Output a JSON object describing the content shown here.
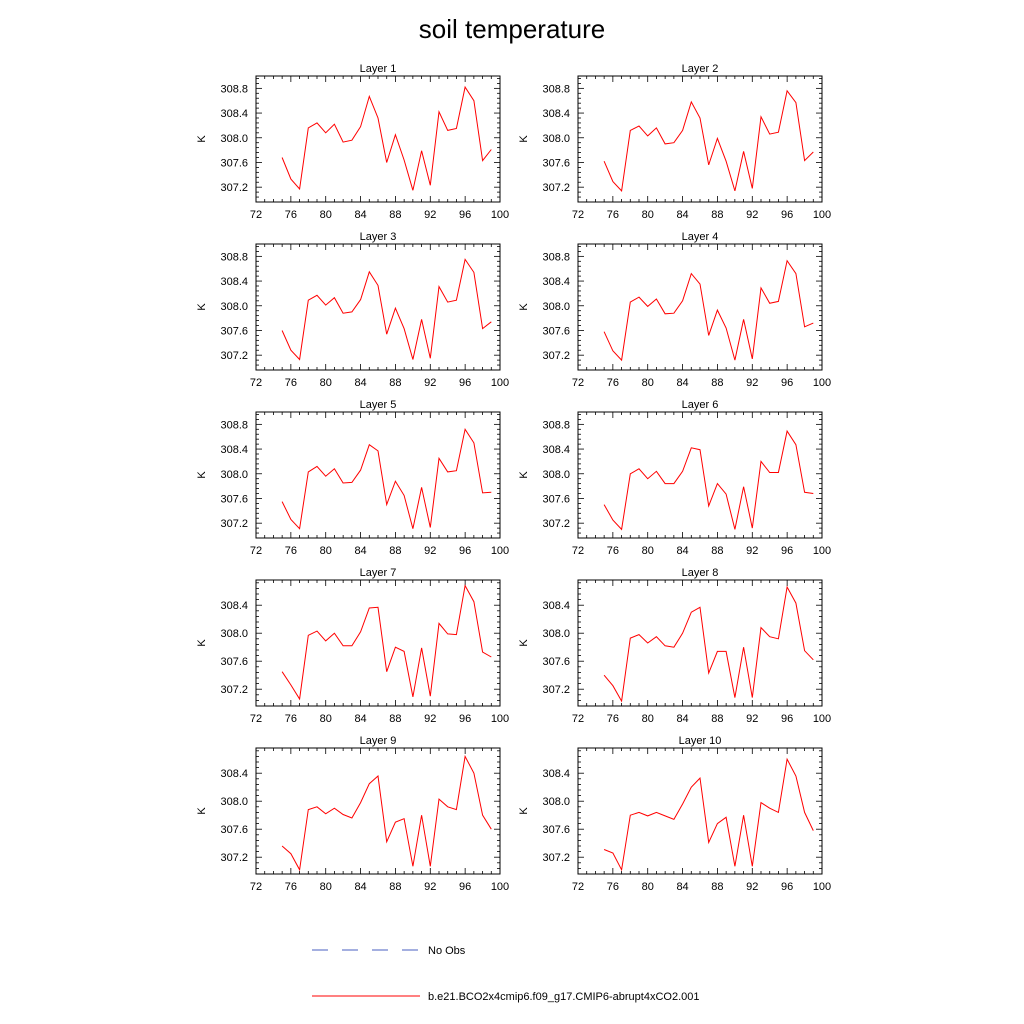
{
  "figure": {
    "title": "soil temperature"
  },
  "legend": {
    "entries": [
      {
        "label": "No Obs",
        "color": "#4a5fc1",
        "style": "dashed"
      },
      {
        "label": "b.e21.BCO2x4cmip6.f09_g17.CMIP6-abrupt4xCO2.001",
        "color": "#ff0000",
        "style": "solid"
      }
    ]
  },
  "chart_data": [
    {
      "type": "line",
      "title": "Layer 1",
      "ylabel": "K",
      "xlim": [
        72,
        100
      ],
      "ylim": [
        306.96,
        309.0
      ],
      "xticks": [
        "72",
        "76",
        "80",
        "84",
        "88",
        "92",
        "96",
        "100"
      ],
      "yticks": [
        "307.2",
        "307.6",
        "308.0",
        "308.4",
        "308.8"
      ],
      "x": [
        75,
        76,
        77,
        78,
        79,
        80,
        81,
        82,
        83,
        84,
        85,
        86,
        87,
        88,
        89,
        90,
        91,
        92,
        93,
        94,
        95,
        96,
        97,
        98,
        99
      ],
      "series": [
        {
          "color": "#ff0000",
          "values": [
            307.68,
            307.33,
            307.17,
            308.16,
            308.24,
            308.08,
            308.22,
            307.93,
            307.96,
            308.18,
            308.67,
            308.32,
            307.6,
            308.05,
            307.64,
            307.15,
            307.79,
            307.23,
            308.42,
            308.12,
            308.15,
            308.82,
            308.6,
            307.63,
            307.81
          ]
        }
      ]
    },
    {
      "type": "line",
      "title": "Layer 2",
      "ylabel": "K",
      "xlim": [
        72,
        100
      ],
      "ylim": [
        306.96,
        309.0
      ],
      "xticks": [
        "72",
        "76",
        "80",
        "84",
        "88",
        "92",
        "96",
        "100"
      ],
      "yticks": [
        "307.2",
        "307.6",
        "308.0",
        "308.4",
        "308.8"
      ],
      "x": [
        75,
        76,
        77,
        78,
        79,
        80,
        81,
        82,
        83,
        84,
        85,
        86,
        87,
        88,
        89,
        90,
        91,
        92,
        93,
        94,
        95,
        96,
        97,
        98,
        99
      ],
      "series": [
        {
          "color": "#ff0000",
          "values": [
            307.62,
            307.29,
            307.14,
            308.12,
            308.19,
            308.03,
            308.16,
            307.9,
            307.92,
            308.12,
            308.58,
            308.32,
            307.56,
            307.99,
            307.62,
            307.14,
            307.78,
            307.18,
            308.34,
            308.06,
            308.09,
            308.76,
            308.57,
            307.63,
            307.77
          ]
        }
      ]
    },
    {
      "type": "line",
      "title": "Layer 3",
      "ylabel": "K",
      "xlim": [
        72,
        100
      ],
      "ylim": [
        306.96,
        309.0
      ],
      "xticks": [
        "72",
        "76",
        "80",
        "84",
        "88",
        "92",
        "96",
        "100"
      ],
      "yticks": [
        "307.2",
        "307.6",
        "308.0",
        "308.4",
        "308.8"
      ],
      "x": [
        75,
        76,
        77,
        78,
        79,
        80,
        81,
        82,
        83,
        84,
        85,
        86,
        87,
        88,
        89,
        90,
        91,
        92,
        93,
        94,
        95,
        96,
        97,
        98,
        99
      ],
      "series": [
        {
          "color": "#ff0000",
          "values": [
            307.6,
            307.28,
            307.13,
            308.09,
            308.17,
            308.01,
            308.13,
            307.88,
            307.9,
            308.1,
            308.55,
            308.33,
            307.54,
            307.96,
            307.63,
            307.13,
            307.78,
            307.15,
            308.31,
            308.06,
            308.09,
            308.75,
            308.54,
            307.63,
            307.74
          ]
        }
      ]
    },
    {
      "type": "line",
      "title": "Layer 4",
      "ylabel": "K",
      "xlim": [
        72,
        100
      ],
      "ylim": [
        306.96,
        309.0
      ],
      "xticks": [
        "72",
        "76",
        "80",
        "84",
        "88",
        "92",
        "96",
        "100"
      ],
      "yticks": [
        "307.2",
        "307.6",
        "308.0",
        "308.4",
        "308.8"
      ],
      "x": [
        75,
        76,
        77,
        78,
        79,
        80,
        81,
        82,
        83,
        84,
        85,
        86,
        87,
        88,
        89,
        90,
        91,
        92,
        93,
        94,
        95,
        96,
        97,
        98,
        99
      ],
      "series": [
        {
          "color": "#ff0000",
          "values": [
            307.58,
            307.27,
            307.12,
            308.06,
            308.14,
            307.99,
            308.11,
            307.87,
            307.88,
            308.08,
            308.52,
            308.35,
            307.52,
            307.93,
            307.64,
            307.12,
            307.78,
            307.14,
            308.29,
            308.04,
            308.07,
            308.73,
            308.52,
            307.66,
            307.72
          ]
        }
      ]
    },
    {
      "type": "line",
      "title": "Layer 5",
      "ylabel": "K",
      "xlim": [
        72,
        100
      ],
      "ylim": [
        306.96,
        309.0
      ],
      "xticks": [
        "72",
        "76",
        "80",
        "84",
        "88",
        "92",
        "96",
        "100"
      ],
      "yticks": [
        "307.2",
        "307.6",
        "308.0",
        "308.4",
        "308.8"
      ],
      "x": [
        75,
        76,
        77,
        78,
        79,
        80,
        81,
        82,
        83,
        84,
        85,
        86,
        87,
        88,
        89,
        90,
        91,
        92,
        93,
        94,
        95,
        96,
        97,
        98,
        99
      ],
      "series": [
        {
          "color": "#ff0000",
          "values": [
            307.55,
            307.26,
            307.11,
            308.03,
            308.12,
            307.96,
            308.08,
            307.85,
            307.86,
            308.06,
            308.47,
            308.37,
            307.5,
            307.88,
            307.65,
            307.11,
            307.78,
            307.13,
            308.25,
            308.03,
            308.05,
            308.72,
            308.5,
            307.69,
            307.7
          ]
        }
      ]
    },
    {
      "type": "line",
      "title": "Layer 6",
      "ylabel": "K",
      "xlim": [
        72,
        100
      ],
      "ylim": [
        306.96,
        309.0
      ],
      "xticks": [
        "72",
        "76",
        "80",
        "84",
        "88",
        "92",
        "96",
        "100"
      ],
      "yticks": [
        "307.2",
        "307.6",
        "308.0",
        "308.4",
        "308.8"
      ],
      "x": [
        75,
        76,
        77,
        78,
        79,
        80,
        81,
        82,
        83,
        84,
        85,
        86,
        87,
        88,
        89,
        90,
        91,
        92,
        93,
        94,
        95,
        96,
        97,
        98,
        99
      ],
      "series": [
        {
          "color": "#ff0000",
          "values": [
            307.5,
            307.25,
            307.1,
            308.0,
            308.08,
            307.92,
            308.04,
            307.84,
            307.84,
            308.04,
            308.42,
            308.39,
            307.48,
            307.84,
            307.67,
            307.1,
            307.79,
            307.12,
            308.2,
            308.02,
            308.02,
            308.69,
            308.47,
            307.7,
            307.68
          ]
        }
      ]
    },
    {
      "type": "line",
      "title": "Layer 7",
      "ylabel": "K",
      "xlim": [
        72,
        100
      ],
      "ylim": [
        306.96,
        308.76
      ],
      "xticks": [
        "72",
        "76",
        "80",
        "84",
        "88",
        "92",
        "96",
        "100"
      ],
      "yticks": [
        "307.2",
        "307.6",
        "308.0",
        "308.4"
      ],
      "x": [
        75,
        76,
        77,
        78,
        79,
        80,
        81,
        82,
        83,
        84,
        85,
        86,
        87,
        88,
        89,
        90,
        91,
        92,
        93,
        94,
        95,
        96,
        97,
        98,
        99
      ],
      "series": [
        {
          "color": "#ff0000",
          "values": [
            307.45,
            307.26,
            307.06,
            307.97,
            308.03,
            307.89,
            308.0,
            307.82,
            307.82,
            308.02,
            308.36,
            308.37,
            307.45,
            307.8,
            307.74,
            307.09,
            307.79,
            307.1,
            308.14,
            307.99,
            307.98,
            308.68,
            308.45,
            307.73,
            307.66
          ]
        }
      ]
    },
    {
      "type": "line",
      "title": "Layer 8",
      "ylabel": "K",
      "xlim": [
        72,
        100
      ],
      "ylim": [
        306.96,
        308.76
      ],
      "xticks": [
        "72",
        "76",
        "80",
        "84",
        "88",
        "92",
        "96",
        "100"
      ],
      "yticks": [
        "307.2",
        "307.6",
        "308.0",
        "308.4"
      ],
      "x": [
        75,
        76,
        77,
        78,
        79,
        80,
        81,
        82,
        83,
        84,
        85,
        86,
        87,
        88,
        89,
        90,
        91,
        92,
        93,
        94,
        95,
        96,
        97,
        98,
        99
      ],
      "series": [
        {
          "color": "#ff0000",
          "values": [
            307.4,
            307.25,
            307.03,
            307.93,
            307.98,
            307.86,
            307.95,
            307.82,
            307.8,
            308.0,
            308.3,
            308.37,
            307.43,
            307.74,
            307.74,
            307.08,
            307.8,
            307.08,
            308.08,
            307.95,
            307.92,
            308.66,
            308.43,
            307.75,
            307.62
          ]
        }
      ]
    },
    {
      "type": "line",
      "title": "Layer 9",
      "ylabel": "K",
      "xlim": [
        72,
        100
      ],
      "ylim": [
        306.96,
        308.76
      ],
      "xticks": [
        "72",
        "76",
        "80",
        "84",
        "88",
        "92",
        "96",
        "100"
      ],
      "yticks": [
        "307.2",
        "307.6",
        "308.0",
        "308.4"
      ],
      "x": [
        75,
        76,
        77,
        78,
        79,
        80,
        81,
        82,
        83,
        84,
        85,
        86,
        87,
        88,
        89,
        90,
        91,
        92,
        93,
        94,
        95,
        96,
        97,
        98,
        99
      ],
      "series": [
        {
          "color": "#ff0000",
          "values": [
            307.36,
            307.25,
            307.02,
            307.88,
            307.92,
            307.82,
            307.9,
            307.81,
            307.76,
            307.98,
            308.25,
            308.36,
            307.42,
            307.7,
            307.75,
            307.07,
            307.8,
            307.07,
            308.03,
            307.92,
            307.88,
            308.64,
            308.4,
            307.8,
            307.6
          ]
        }
      ]
    },
    {
      "type": "line",
      "title": "Layer 10",
      "ylabel": "K",
      "xlim": [
        72,
        100
      ],
      "ylim": [
        306.96,
        308.76
      ],
      "xticks": [
        "72",
        "76",
        "80",
        "84",
        "88",
        "92",
        "96",
        "100"
      ],
      "yticks": [
        "307.2",
        "307.6",
        "308.0",
        "308.4"
      ],
      "x": [
        75,
        76,
        77,
        78,
        79,
        80,
        81,
        82,
        83,
        84,
        85,
        86,
        87,
        88,
        89,
        90,
        91,
        92,
        93,
        94,
        95,
        96,
        97,
        98,
        99
      ],
      "series": [
        {
          "color": "#ff0000",
          "values": [
            307.31,
            307.26,
            307.02,
            307.8,
            307.84,
            307.79,
            307.84,
            307.79,
            307.74,
            307.96,
            308.2,
            308.33,
            307.41,
            307.68,
            307.77,
            307.07,
            307.8,
            307.07,
            307.98,
            307.9,
            307.84,
            308.6,
            308.36,
            307.84,
            307.58
          ]
        }
      ]
    }
  ]
}
